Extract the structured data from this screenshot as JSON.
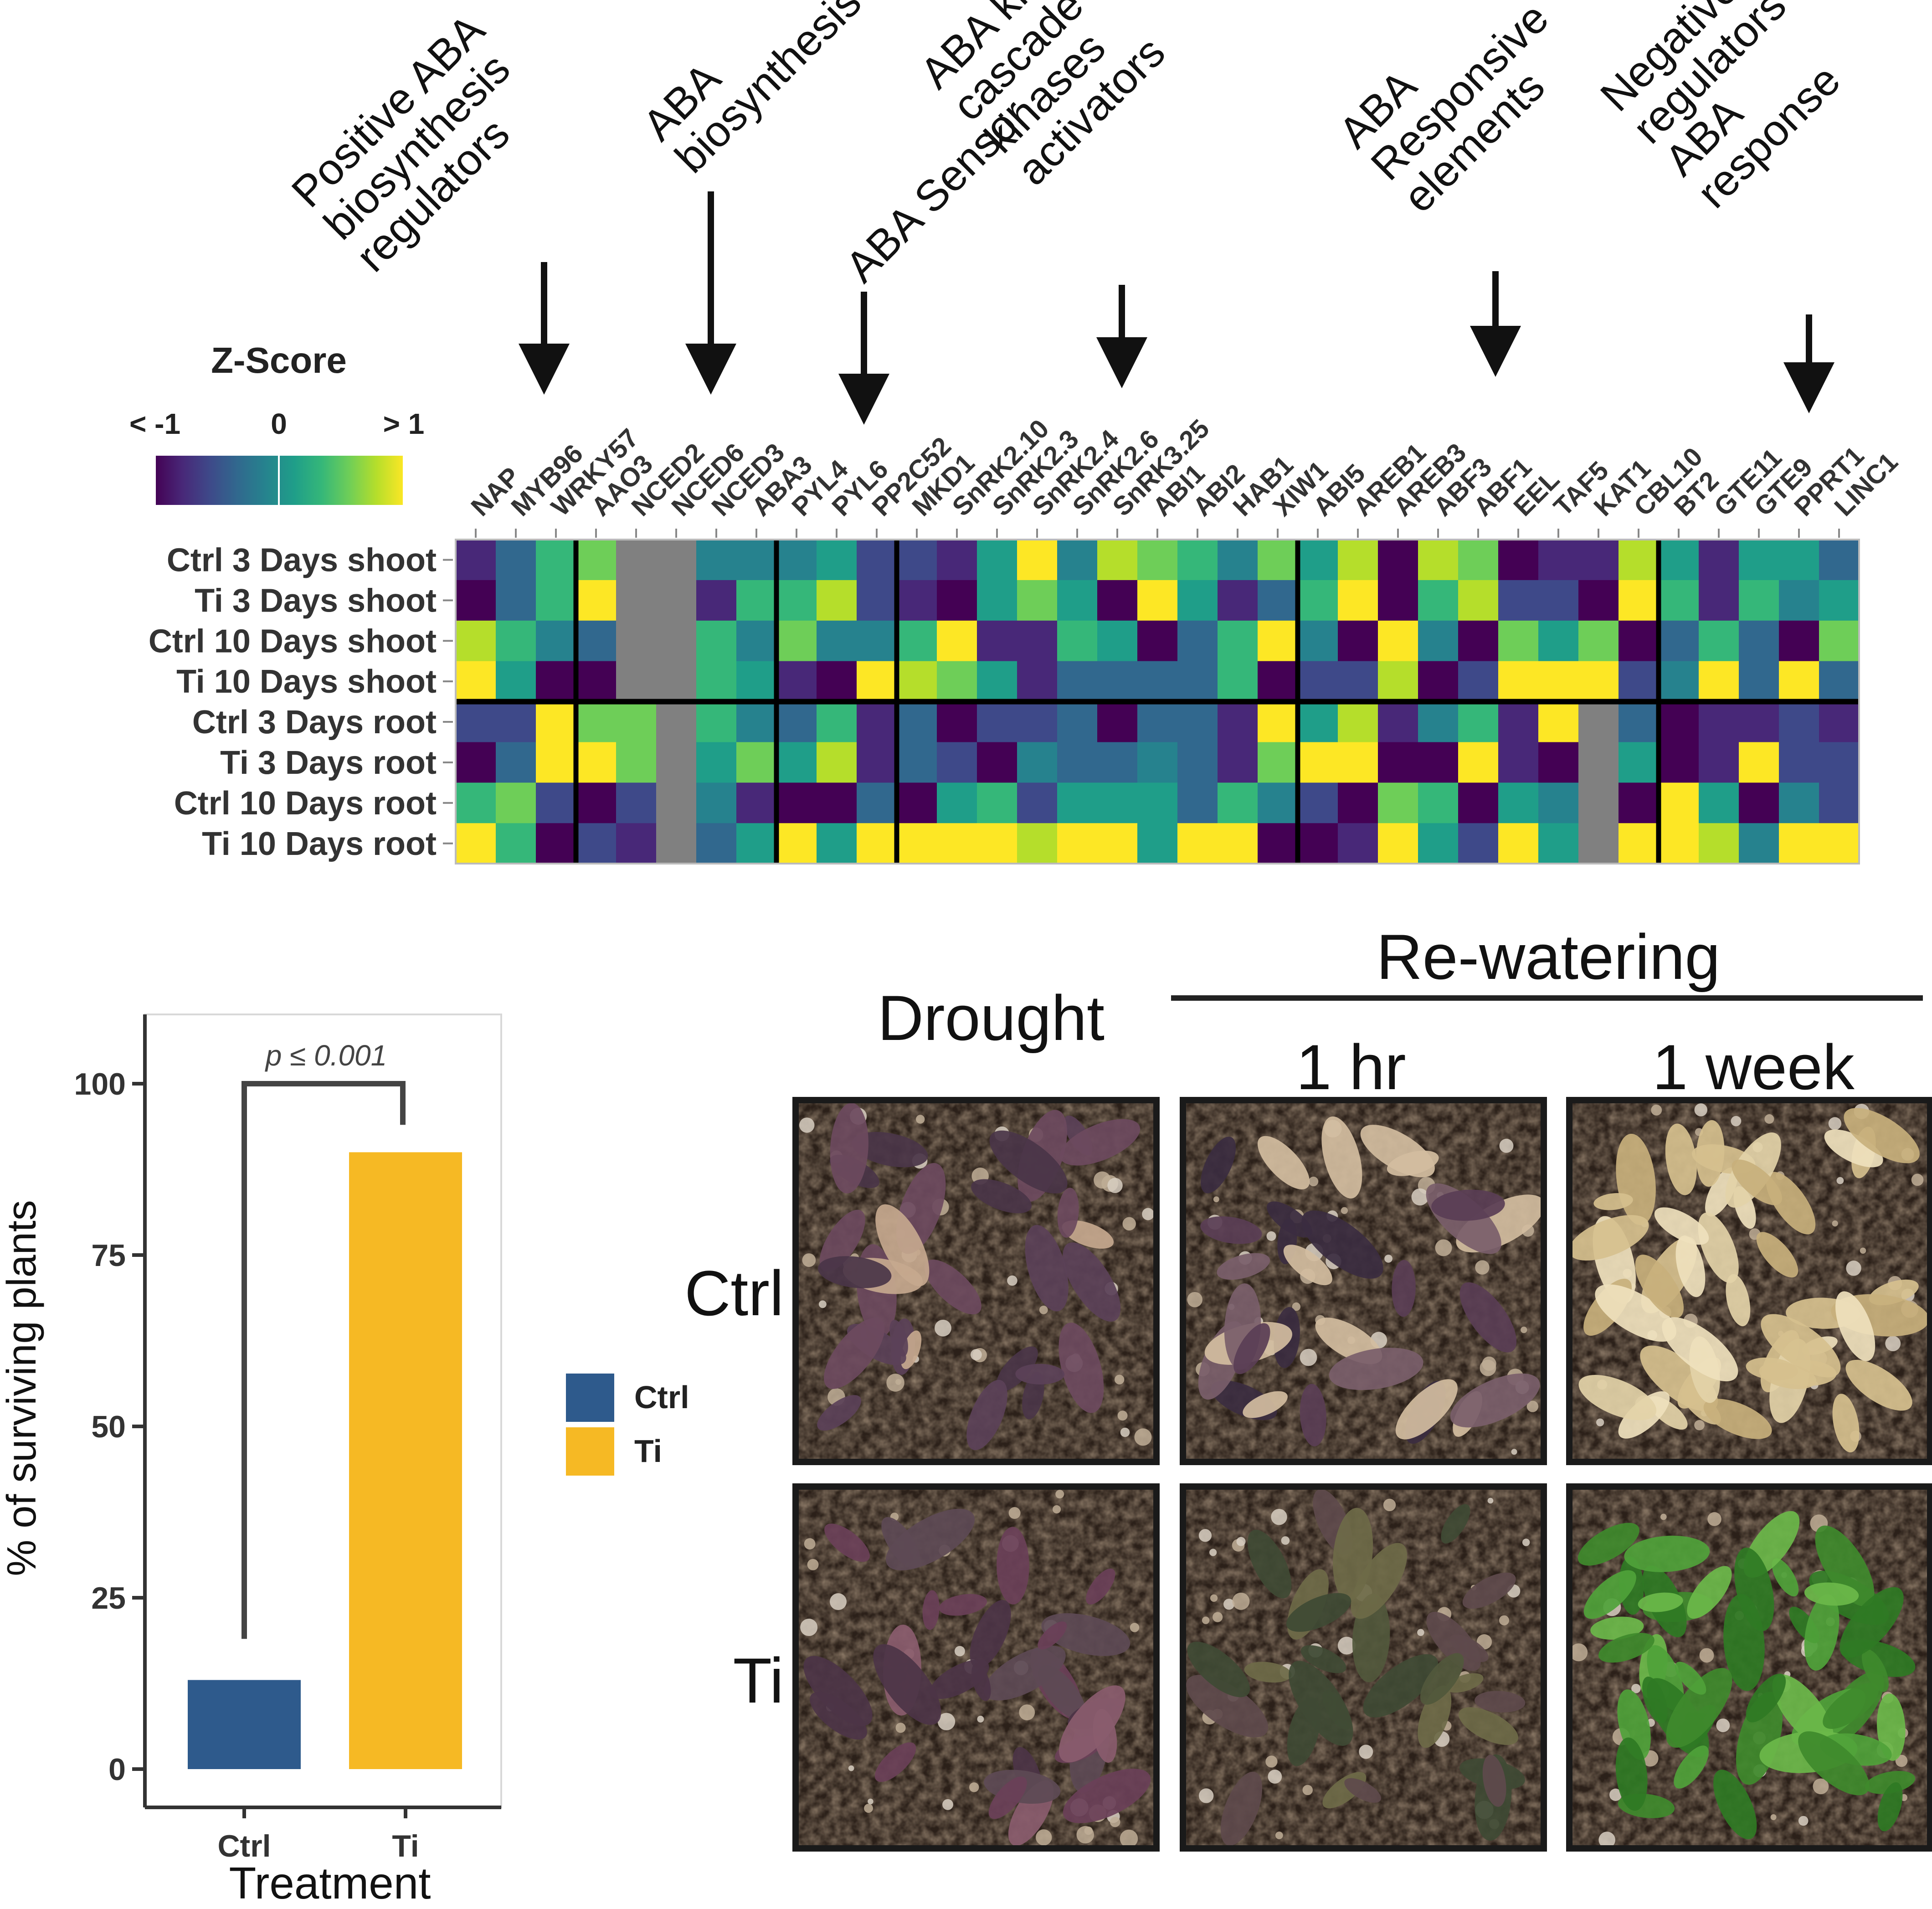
{
  "colors": {
    "ctrl": "#2e5a8c",
    "ti": "#f6b924",
    "na": "#808080",
    "axis": "#333333",
    "viridis": [
      "#440154",
      "#482878",
      "#3e4989",
      "#31688e",
      "#26828e",
      "#1f9e89",
      "#35b779",
      "#6ece58",
      "#b5de2b",
      "#fde725"
    ]
  },
  "heatmap": {
    "legend_title": "Z-Score",
    "legend_ticks": [
      "< -1",
      "0",
      "> 1"
    ],
    "categories": [
      {
        "lines": [
          "Positive ABA",
          "biosynthesis",
          "regulators"
        ]
      },
      {
        "lines": [
          "ABA",
          "biosynthesis"
        ]
      },
      {
        "lines": [
          "ABA Sensor"
        ]
      },
      {
        "lines": [
          "ABA kinases",
          "cascade and",
          "kinases",
          "activators"
        ]
      },
      {
        "lines": [
          "ABA",
          "Responsive",
          "elements"
        ]
      },
      {
        "lines": [
          "Negative",
          "regulators of",
          "ABA",
          "response"
        ]
      }
    ],
    "genes": [
      "NAP",
      "MYB96",
      "WRKY57",
      "AAO3",
      "NCED2",
      "NCED6",
      "NCED3",
      "ABA3",
      "PYL4",
      "PYL6",
      "PP2C52",
      "MKD1",
      "SnRK2.10",
      "SnRK2.3",
      "SnRK2.4",
      "SnRK2.6",
      "SnRK3.25",
      "ABI1",
      "ABI2",
      "HAB1",
      "XIW1",
      "ABI5",
      "AREB1",
      "AREB3",
      "ABF3",
      "ABF1",
      "EEL",
      "TAF5",
      "KAT1",
      "CBL10",
      "BT2",
      "GTE11",
      "GTE9",
      "PPRT1",
      "LINC1"
    ],
    "rows": [
      "Ctrl 3 Days shoot",
      "Ti 3 Days shoot",
      "Ctrl 10 Days shoot",
      "Ti 10 Days shoot",
      "Ctrl 3 Days root",
      "Ti 3 Days root",
      "Ctrl 10 Days root",
      "Ti 10 Days root"
    ],
    "group_breaks_after_gene": [
      2,
      7,
      10,
      20,
      29
    ],
    "row_break_after": 3
  },
  "chart_data": [
    {
      "type": "heatmap",
      "title": "Z-Score",
      "zlim": [
        -1,
        1
      ],
      "x": [
        "NAP",
        "MYB96",
        "WRKY57",
        "AAO3",
        "NCED2",
        "NCED6",
        "NCED3",
        "ABA3",
        "PYL4",
        "PYL6",
        "PP2C52",
        "MKD1",
        "SnRK2.10",
        "SnRK2.3",
        "SnRK2.4",
        "SnRK2.6",
        "SnRK3.25",
        "ABI1",
        "ABI2",
        "HAB1",
        "XIW1",
        "ABI5",
        "AREB1",
        "AREB3",
        "ABF3",
        "ABF1",
        "EEL",
        "TAF5",
        "KAT1",
        "CBL10",
        "BT2",
        "GTE11",
        "GTE9",
        "PPRT1",
        "LINC1"
      ],
      "y": [
        "Ctrl 3 Days shoot",
        "Ti 3 Days shoot",
        "Ctrl 10 Days shoot",
        "Ti 10 Days shoot",
        "Ctrl 3 Days root",
        "Ti 3 Days root",
        "Ctrl 10 Days root",
        "Ti 10 Days root"
      ],
      "values": [
        [
          -0.7,
          -0.4,
          0.4,
          0.6,
          null,
          null,
          -0.1,
          -0.2,
          -0.2,
          0.2,
          -0.5,
          -0.6,
          -0.8,
          0.2,
          1,
          -0.2,
          0.8,
          0.5,
          0.3,
          -0.1,
          0.5,
          0.1,
          0.8,
          -1,
          0.8,
          0.6,
          -1,
          -0.8,
          -0.8,
          0.8,
          0.1,
          -0.8,
          0,
          0.1,
          -0.3
        ],
        [
          -1,
          -0.3,
          0.4,
          1,
          null,
          null,
          -0.7,
          0.3,
          0.3,
          0.7,
          -0.6,
          -0.7,
          -1,
          0.2,
          0.6,
          0,
          -0.9,
          1,
          0.1,
          -0.8,
          -0.3,
          0.3,
          1,
          -1,
          0.3,
          0.8,
          -0.5,
          -0.6,
          -1,
          1,
          0.3,
          -0.8,
          0.4,
          -0.2,
          0.1
        ],
        [
          0.7,
          0.3,
          -0.1,
          -0.3,
          null,
          null,
          0.3,
          -0.2,
          0.6,
          -0.2,
          -0.1,
          0.3,
          1,
          -0.7,
          -0.8,
          0.4,
          0.2,
          -1,
          -0.3,
          0.4,
          1,
          -0.1,
          -1,
          1,
          -0.1,
          -0.9,
          0.5,
          0.1,
          0.5,
          -1,
          -0.4,
          0.4,
          -0.4,
          -1,
          0.6
        ],
        [
          0.9,
          0.2,
          -1,
          -1,
          null,
          null,
          0.3,
          0.1,
          -0.8,
          -0.9,
          1,
          0.7,
          0.6,
          0.2,
          -0.8,
          -0.3,
          -0.3,
          -0.4,
          -0.4,
          0.3,
          -1,
          -0.6,
          -0.5,
          0.7,
          -1,
          -0.5,
          1,
          1,
          1,
          -0.6,
          -0.2,
          1,
          -0.3,
          1,
          -0.4
        ],
        [
          -0.6,
          -0.6,
          0.9,
          0.6,
          0.6,
          null,
          0.3,
          -0.1,
          -0.3,
          0.4,
          -0.7,
          -0.4,
          -1,
          -0.6,
          -0.6,
          -0.4,
          -0.9,
          -0.4,
          -0.4,
          -0.7,
          0.9,
          0.2,
          0.8,
          -0.7,
          -0.2,
          0.4,
          -0.7,
          1,
          null,
          -0.3,
          -1,
          -0.8,
          -0.7,
          -0.6,
          -0.8
        ],
        [
          -1,
          -0.3,
          0.9,
          1,
          0.5,
          null,
          0.2,
          0.6,
          0,
          0.7,
          -0.7,
          -0.3,
          -0.6,
          -1,
          -0.2,
          -0.4,
          -0.3,
          -0.2,
          -0.3,
          -0.8,
          0.6,
          1,
          1,
          -1,
          -0.9,
          0.9,
          -0.8,
          -0.9,
          null,
          0,
          -1,
          -0.8,
          1,
          -0.6,
          -0.5
        ],
        [
          0.4,
          0.5,
          -0.5,
          -1,
          -0.6,
          null,
          -0.1,
          -0.8,
          -1,
          -1,
          -0.3,
          -0.9,
          0.1,
          0.3,
          -0.6,
          0.1,
          0.1,
          0.2,
          -0.3,
          0.3,
          -0.1,
          -0.5,
          -1,
          0.6,
          0.4,
          -1,
          0,
          -0.1,
          null,
          -0.9,
          1,
          0.2,
          -1,
          -0.2,
          -0.6
        ],
        [
          1,
          0.3,
          -1,
          -0.5,
          -0.7,
          null,
          -0.3,
          0.1,
          1,
          0.2,
          1,
          1,
          1,
          1,
          0.8,
          1,
          0.9,
          0.1,
          1,
          1,
          -1,
          -0.9,
          -0.8,
          1,
          0.2,
          -0.5,
          1,
          0.1,
          null,
          1,
          0.9,
          0.8,
          -0.1,
          1,
          1
        ]
      ]
    },
    {
      "type": "bar",
      "categories": [
        "Ctrl",
        "Ti"
      ],
      "values": [
        13,
        90
      ],
      "xlabel": "Treatment",
      "ylabel": "% of surviving plants",
      "ylim": [
        0,
        110
      ],
      "yticks": [
        0,
        25,
        50,
        75,
        100
      ],
      "annotation": "p ≤ 0.001",
      "bracket_left": 19,
      "bracket_right": 94,
      "bracket_top": 100,
      "legend": [
        "Ctrl",
        "Ti"
      ]
    }
  ],
  "photos": {
    "group_title": "Re-watering",
    "columns": [
      "Drought",
      "1 hr",
      "1 week"
    ],
    "rows": [
      "Ctrl",
      "Ti"
    ]
  }
}
